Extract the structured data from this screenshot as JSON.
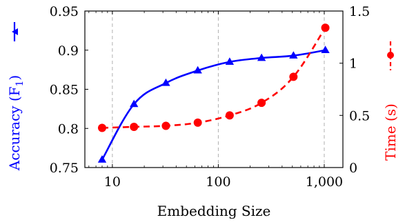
{
  "chart_data": {
    "type": "line",
    "xlabel": "Embedding Size",
    "ylabel_left": "Accuracy (F",
    "ylabel_left_sub": "1",
    "ylabel_left_close": ")",
    "ylabel_right": "Time (s)",
    "x_scale": "log",
    "xlim": [
      5.5,
      1500
    ],
    "ylim_left": [
      0.75,
      0.95
    ],
    "ylim_right": [
      0,
      1.5
    ],
    "x_ticks": [
      {
        "value": 10,
        "label": "10"
      },
      {
        "value": 100,
        "label": "100"
      },
      {
        "value": 1000,
        "label": "1,000"
      }
    ],
    "y_ticks_left": [
      {
        "value": 0.75,
        "label": "0.75"
      },
      {
        "value": 0.8,
        "label": "0.8"
      },
      {
        "value": 0.85,
        "label": "0.85"
      },
      {
        "value": 0.9,
        "label": "0.9"
      },
      {
        "value": 0.95,
        "label": "0.95"
      }
    ],
    "y_ticks_right": [
      {
        "value": 0,
        "label": "0"
      },
      {
        "value": 0.5,
        "label": "0.5"
      },
      {
        "value": 1,
        "label": "1"
      },
      {
        "value": 1.5,
        "label": "1.5"
      }
    ],
    "grid": "vertical-major-dashed",
    "series": [
      {
        "axis": "left",
        "color": "#0000ff",
        "marker": "triangle",
        "line": "solid",
        "x": [
          8,
          16,
          32,
          64,
          128,
          256,
          512,
          1024
        ],
        "y": [
          0.76,
          0.831,
          0.858,
          0.874,
          0.885,
          0.89,
          0.893,
          0.9
        ]
      },
      {
        "axis": "right",
        "color": "#ff0000",
        "marker": "circle",
        "line": "dashed",
        "x": [
          8,
          16,
          32,
          64,
          128,
          256,
          512,
          1024
        ],
        "y": [
          0.38,
          0.39,
          0.4,
          0.43,
          0.5,
          0.62,
          0.87,
          1.34
        ]
      }
    ]
  }
}
